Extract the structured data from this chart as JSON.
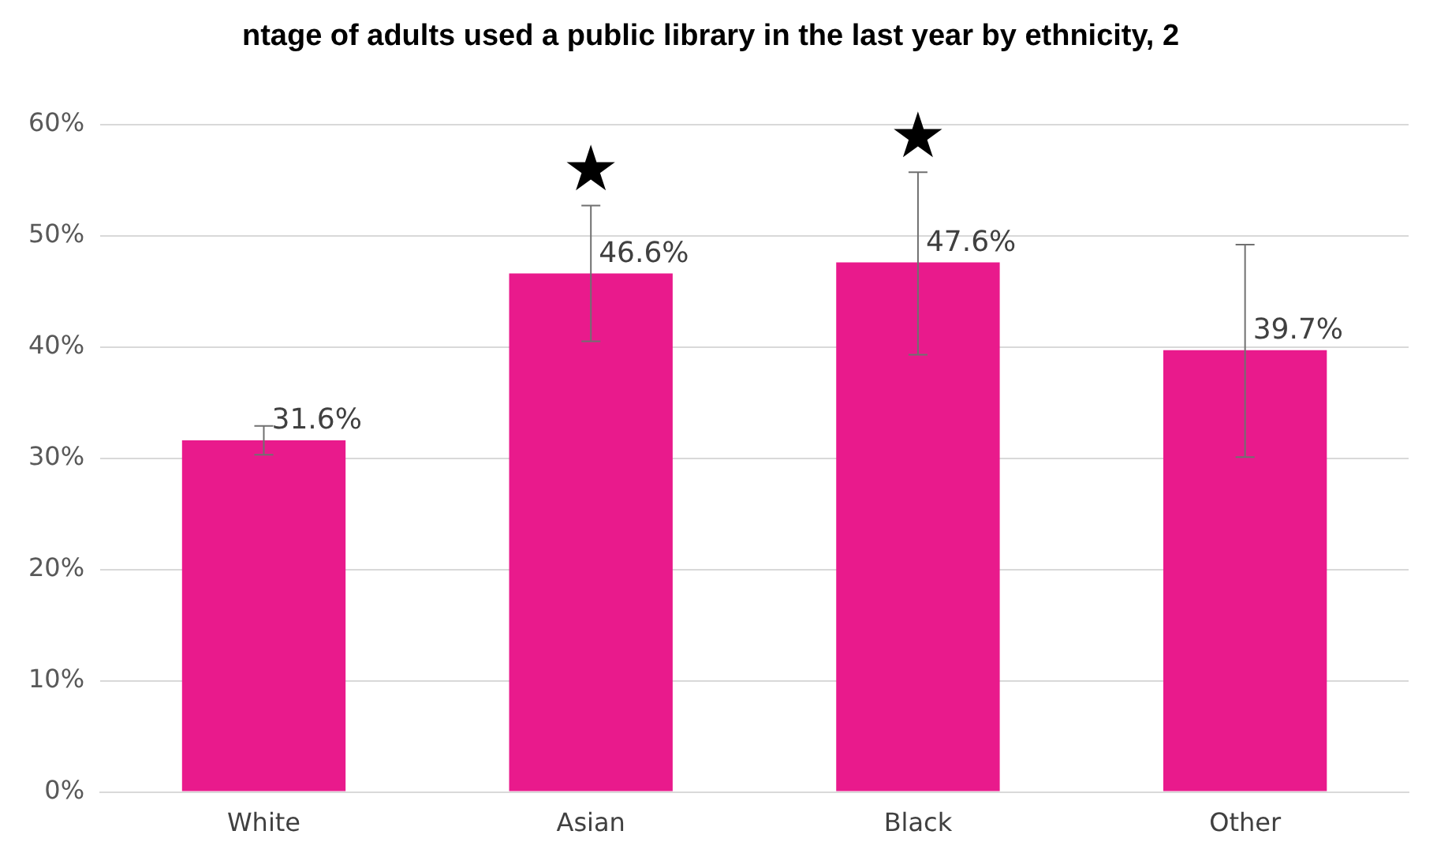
{
  "chart_data": {
    "type": "bar",
    "title": "ntage of adults used a public library in the last year by ethnicity, 2",
    "categories": [
      "White",
      "Asian",
      "Black",
      "Other"
    ],
    "values": [
      31.6,
      46.6,
      47.6,
      39.7
    ],
    "value_labels": [
      "31.6%",
      "46.6%",
      "47.6%",
      "39.7%"
    ],
    "errors": [
      [
        30.3,
        32.9
      ],
      [
        40.5,
        52.7
      ],
      [
        39.3,
        55.7
      ],
      [
        30.1,
        49.2
      ]
    ],
    "color": "#e91a8c",
    "ylim": [
      0,
      60
    ],
    "yticks": [
      {
        "value": 0,
        "label": "0%"
      },
      {
        "value": 10,
        "label": "10%"
      },
      {
        "value": 20,
        "label": "20%"
      },
      {
        "value": 30,
        "label": "30%"
      },
      {
        "value": 40,
        "label": "40%"
      },
      {
        "value": 50,
        "label": "50%"
      },
      {
        "value": 60,
        "label": "60%"
      }
    ],
    "grid": "y",
    "annotations": [
      "★",
      "★"
    ]
  }
}
